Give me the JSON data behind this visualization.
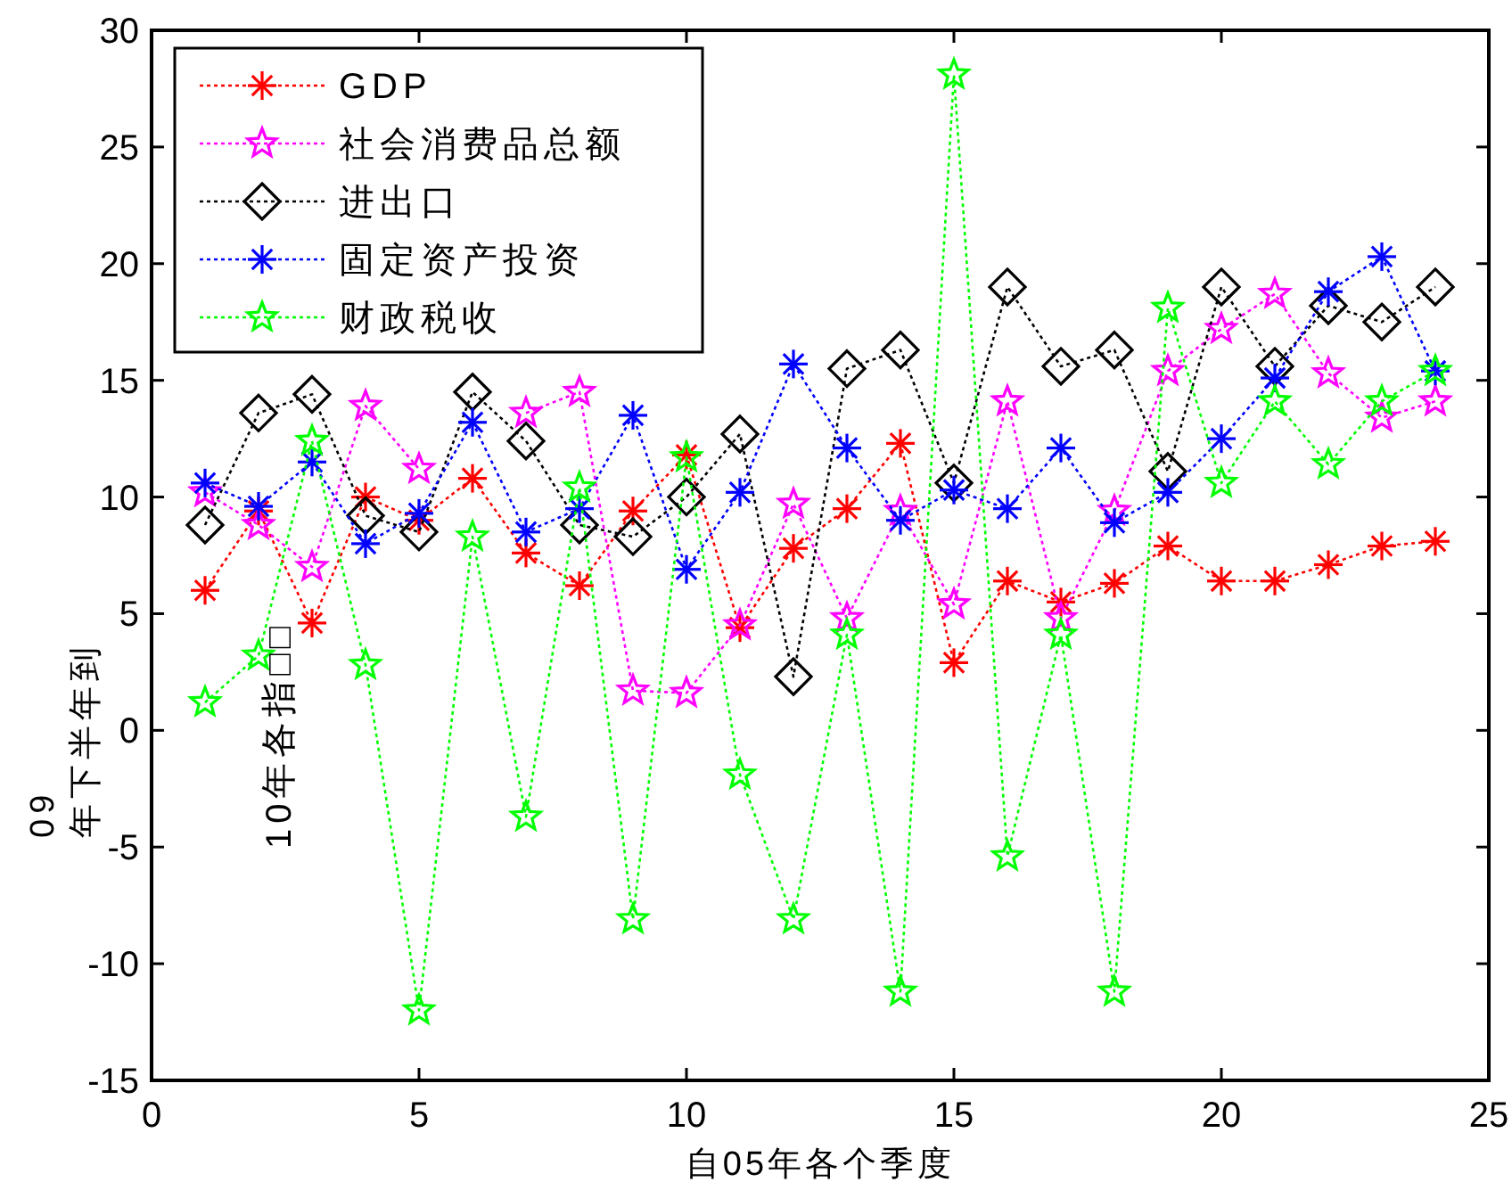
{
  "chart_data": {
    "type": "line",
    "xlabel": "自05年各个季度",
    "ylabel": "09\n年下半年到",
    "annotations": [
      "10年各指□□"
    ],
    "x": [
      1,
      2,
      3,
      4,
      5,
      6,
      7,
      8,
      9,
      10,
      11,
      12,
      13,
      14,
      15,
      16,
      17,
      18,
      19,
      20,
      21,
      22,
      23,
      24
    ],
    "xlim": [
      0,
      25
    ],
    "xticks": [
      0,
      5,
      10,
      15,
      20,
      25
    ],
    "ylim": [
      -15,
      30
    ],
    "yticks": [
      -15,
      -10,
      -5,
      0,
      5,
      10,
      15,
      20,
      25,
      30
    ],
    "legend": "top left",
    "line_style": "dotted",
    "series": [
      {
        "name": "GDP",
        "color": "#ff0000",
        "marker": "cross",
        "values": [
          6.0,
          9.4,
          4.6,
          10.0,
          9.0,
          10.8,
          7.6,
          6.2,
          9.4,
          11.8,
          4.4,
          7.8,
          9.5,
          12.3,
          2.9,
          6.4,
          5.5,
          6.3,
          7.9,
          6.4,
          6.4,
          7.1,
          7.9,
          8.1
        ]
      },
      {
        "name": "社会消费品总额",
        "color": "#ff00ff",
        "marker": "star",
        "values": [
          10.2,
          8.8,
          7.0,
          13.9,
          11.2,
          null,
          13.6,
          14.5,
          1.7,
          1.6,
          4.5,
          9.7,
          4.8,
          9.4,
          5.4,
          14.1,
          4.8,
          9.4,
          15.4,
          17.2,
          18.7,
          15.3,
          13.4,
          14.1
        ]
      },
      {
        "name": "进出口",
        "color": "#000000",
        "marker": "diamond",
        "values": [
          8.8,
          13.6,
          14.4,
          9.2,
          8.5,
          14.5,
          12.4,
          8.8,
          8.3,
          10.0,
          12.7,
          2.3,
          15.5,
          16.3,
          10.6,
          19.0,
          15.6,
          16.3,
          11.1,
          19.0,
          15.6,
          18.2,
          17.5,
          19.0
        ]
      },
      {
        "name": "固定资产投资",
        "color": "#0000ff",
        "marker": "cross",
        "values": [
          10.6,
          9.6,
          11.5,
          8.0,
          9.3,
          13.2,
          8.5,
          9.5,
          13.5,
          6.9,
          10.2,
          15.7,
          12.1,
          9.0,
          10.3,
          9.5,
          12.1,
          8.9,
          10.2,
          12.5,
          15.1,
          18.8,
          20.3,
          15.4
        ]
      },
      {
        "name": "财政税收",
        "color": "#00ff00",
        "marker": "star",
        "values": [
          1.2,
          3.2,
          12.4,
          2.8,
          -12.0,
          8.3,
          -3.7,
          10.4,
          -8.1,
          11.7,
          -1.9,
          -8.1,
          4.1,
          -11.2,
          28.1,
          -5.4,
          4.1,
          -11.2,
          18.1,
          10.6,
          14.1,
          11.4,
          14.1,
          15.4
        ]
      }
    ]
  }
}
